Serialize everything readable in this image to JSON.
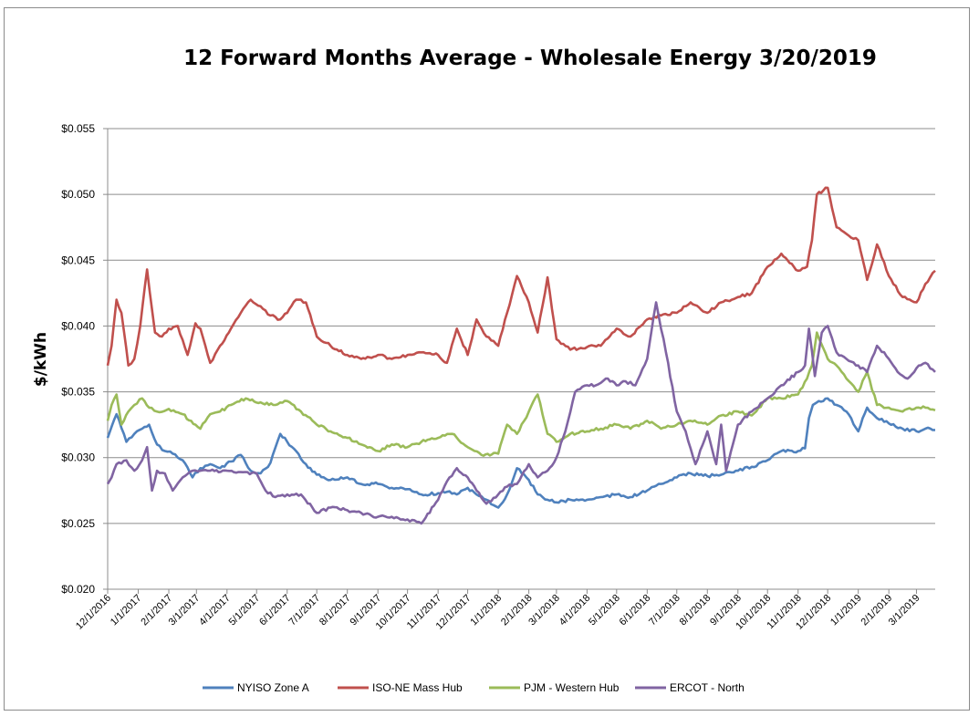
{
  "chart_data": {
    "type": "line",
    "title": "12 Forward Months Average - Wholesale Energy 3/20/2019",
    "xlabel": "",
    "ylabel": "$/kWh",
    "ylim": [
      0.02,
      0.055
    ],
    "yticks": [
      "$0.020",
      "$0.025",
      "$0.030",
      "$0.035",
      "$0.040",
      "$0.045",
      "$0.050",
      "$0.055"
    ],
    "xticks": [
      "12/1/2016",
      "1/1/2017",
      "2/1/2017",
      "3/1/2017",
      "4/1/2017",
      "5/1/2017",
      "6/1/2017",
      "7/1/2017",
      "8/1/2017",
      "9/1/2017",
      "10/1/2017",
      "11/1/2017",
      "12/1/2017",
      "1/1/2018",
      "2/1/2018",
      "3/1/2018",
      "4/1/2018",
      "5/1/2018",
      "6/1/2018",
      "7/1/2018",
      "8/1/2018",
      "9/1/2018",
      "10/1/2018",
      "11/1/2018",
      "12/1/2018",
      "1/1/2019",
      "2/1/2019",
      "3/1/2019"
    ],
    "grid": true,
    "legend_position": "bottom",
    "series": [
      {
        "name": "NYISO Zone A",
        "color": "#4f81bd",
        "x": [
          "12/1/2016",
          "12/10/2016",
          "12/20/2016",
          "12/28/2016",
          "1/5/2017",
          "1/12/2017",
          "1/20/2017",
          "1/28/2017",
          "2/5/2017",
          "2/15/2017",
          "2/25/2017",
          "3/5/2017",
          "3/15/2017",
          "3/25/2017",
          "4/5/2017",
          "4/15/2017",
          "4/25/2017",
          "5/5/2017",
          "5/15/2017",
          "5/25/2017",
          "6/1/2017",
          "6/10/2017",
          "6/20/2017",
          "7/1/2017",
          "7/15/2017",
          "8/1/2017",
          "8/15/2017",
          "9/1/2017",
          "9/15/2017",
          "10/1/2017",
          "10/15/2017",
          "11/1/2017",
          "11/10/2017",
          "11/20/2017",
          "12/1/2017",
          "12/10/2017",
          "12/20/2017",
          "1/1/2018",
          "1/10/2018",
          "1/20/2018",
          "2/1/2018",
          "2/10/2018",
          "2/20/2018",
          "3/1/2018",
          "3/15/2018",
          "4/1/2018",
          "4/15/2018",
          "5/1/2018",
          "5/15/2018",
          "6/1/2018",
          "6/15/2018",
          "7/1/2018",
          "7/15/2018",
          "8/1/2018",
          "8/15/2018",
          "9/1/2018",
          "9/15/2018",
          "10/1/2018",
          "10/15/2018",
          "11/1/2018",
          "11/8/2018",
          "11/12/2018",
          "11/16/2018",
          "11/22/2018",
          "12/1/2018",
          "12/10/2018",
          "12/20/2018",
          "1/1/2019",
          "1/10/2019",
          "1/20/2019",
          "2/1/2019",
          "2/15/2019",
          "3/1/2019",
          "3/10/2019",
          "3/20/2019"
        ],
        "y": [
          0.0315,
          0.0333,
          0.0312,
          0.0318,
          0.0322,
          0.0325,
          0.031,
          0.0305,
          0.0303,
          0.0298,
          0.0285,
          0.0292,
          0.0295,
          0.0292,
          0.0297,
          0.0302,
          0.029,
          0.0288,
          0.0296,
          0.0318,
          0.0312,
          0.0305,
          0.0295,
          0.0287,
          0.0283,
          0.0285,
          0.028,
          0.028,
          0.0277,
          0.0276,
          0.0272,
          0.0273,
          0.0274,
          0.0272,
          0.0277,
          0.0272,
          0.0268,
          0.0262,
          0.0272,
          0.0292,
          0.0283,
          0.0272,
          0.0268,
          0.0266,
          0.0268,
          0.0268,
          0.027,
          0.0272,
          0.027,
          0.0275,
          0.028,
          0.0285,
          0.0288,
          0.0286,
          0.0287,
          0.029,
          0.0293,
          0.0298,
          0.0305,
          0.0305,
          0.0307,
          0.033,
          0.034,
          0.0343,
          0.0345,
          0.034,
          0.0335,
          0.032,
          0.0338,
          0.033,
          0.0326,
          0.0322,
          0.032,
          0.0322,
          0.0321
        ]
      },
      {
        "name": "ISO-NE Mass Hub",
        "color": "#c0504d",
        "x": [
          "12/1/2016",
          "12/5/2016",
          "12/10/2016",
          "12/15/2016",
          "12/22/2016",
          "12/28/2016",
          "1/3/2017",
          "1/10/2017",
          "1/18/2017",
          "1/25/2017",
          "2/1/2017",
          "2/10/2017",
          "2/20/2017",
          "2/28/2017",
          "3/5/2017",
          "3/15/2017",
          "3/25/2017",
          "4/5/2017",
          "4/15/2017",
          "4/25/2017",
          "5/5/2017",
          "5/15/2017",
          "5/25/2017",
          "6/1/2017",
          "6/10/2017",
          "6/20/2017",
          "7/1/2017",
          "7/15/2017",
          "8/1/2017",
          "8/15/2017",
          "9/1/2017",
          "9/15/2017",
          "10/1/2017",
          "10/15/2017",
          "11/1/2017",
          "11/10/2017",
          "11/20/2017",
          "12/1/2017",
          "12/10/2017",
          "12/20/2017",
          "1/1/2018",
          "1/10/2018",
          "1/20/2018",
          "2/1/2018",
          "2/10/2018",
          "2/20/2018",
          "3/1/2018",
          "3/15/2018",
          "4/1/2018",
          "4/15/2018",
          "5/1/2018",
          "5/15/2018",
          "6/1/2018",
          "6/15/2018",
          "7/1/2018",
          "7/15/2018",
          "8/1/2018",
          "8/15/2018",
          "9/1/2018",
          "9/15/2018",
          "10/1/2018",
          "10/15/2018",
          "11/1/2018",
          "11/10/2018",
          "11/15/2018",
          "11/20/2018",
          "12/1/2018",
          "12/10/2018",
          "12/20/2018",
          "1/1/2019",
          "1/10/2019",
          "1/20/2019",
          "2/1/2019",
          "2/15/2019",
          "3/1/2019",
          "3/10/2019",
          "3/20/2019"
        ],
        "y": [
          0.037,
          0.0385,
          0.042,
          0.041,
          0.037,
          0.0375,
          0.04,
          0.0443,
          0.0395,
          0.0392,
          0.0398,
          0.04,
          0.0378,
          0.0402,
          0.0398,
          0.0372,
          0.0385,
          0.0398,
          0.041,
          0.042,
          0.0415,
          0.0408,
          0.0405,
          0.041,
          0.042,
          0.0418,
          0.0392,
          0.0385,
          0.0378,
          0.0375,
          0.0378,
          0.0375,
          0.0378,
          0.038,
          0.0378,
          0.0372,
          0.0398,
          0.0378,
          0.0405,
          0.0392,
          0.0385,
          0.041,
          0.0438,
          0.0418,
          0.0395,
          0.0437,
          0.039,
          0.0382,
          0.0384,
          0.0385,
          0.0398,
          0.0392,
          0.0405,
          0.0408,
          0.041,
          0.0418,
          0.041,
          0.0418,
          0.0422,
          0.0425,
          0.0445,
          0.0455,
          0.0442,
          0.0445,
          0.0465,
          0.05,
          0.0505,
          0.0475,
          0.047,
          0.0465,
          0.0435,
          0.0462,
          0.0438,
          0.0422,
          0.0418,
          0.0432,
          0.0442
        ]
      },
      {
        "name": "PJM - Western Hub",
        "color": "#9bbb59",
        "x": [
          "12/1/2016",
          "12/5/2016",
          "12/10/2016",
          "12/15/2016",
          "12/22/2016",
          "12/28/2016",
          "1/5/2017",
          "1/12/2017",
          "1/20/2017",
          "2/1/2017",
          "2/15/2017",
          "2/28/2017",
          "3/5/2017",
          "3/15/2017",
          "3/25/2017",
          "4/5/2017",
          "4/20/2017",
          "5/5/2017",
          "5/20/2017",
          "6/1/2017",
          "6/15/2017",
          "7/1/2017",
          "7/15/2017",
          "8/1/2017",
          "8/15/2017",
          "9/1/2017",
          "9/15/2017",
          "10/1/2017",
          "10/15/2017",
          "11/1/2017",
          "11/15/2017",
          "12/1/2017",
          "12/15/2017",
          "1/1/2018",
          "1/10/2018",
          "1/20/2018",
          "2/1/2018",
          "2/10/2018",
          "2/20/2018",
          "3/1/2018",
          "3/15/2018",
          "4/1/2018",
          "4/15/2018",
          "5/1/2018",
          "5/15/2018",
          "6/1/2018",
          "6/15/2018",
          "7/1/2018",
          "7/15/2018",
          "8/1/2018",
          "8/15/2018",
          "9/1/2018",
          "9/15/2018",
          "10/1/2018",
          "10/15/2018",
          "11/1/2018",
          "11/10/2018",
          "11/15/2018",
          "11/20/2018",
          "12/1/2018",
          "12/10/2018",
          "12/20/2018",
          "1/1/2019",
          "1/10/2019",
          "1/20/2019",
          "2/1/2019",
          "2/15/2019",
          "3/1/2019",
          "3/10/2019",
          "3/20/2019"
        ],
        "y": [
          0.0328,
          0.034,
          0.0348,
          0.0325,
          0.0335,
          0.034,
          0.0345,
          0.0338,
          0.0335,
          0.0337,
          0.0333,
          0.0325,
          0.0322,
          0.0333,
          0.0335,
          0.034,
          0.0345,
          0.0342,
          0.034,
          0.0343,
          0.0335,
          0.0325,
          0.032,
          0.0315,
          0.031,
          0.0305,
          0.031,
          0.0308,
          0.0312,
          0.0315,
          0.0318,
          0.0308,
          0.0302,
          0.0303,
          0.0325,
          0.0318,
          0.0335,
          0.0348,
          0.0318,
          0.0312,
          0.0318,
          0.032,
          0.0322,
          0.0325,
          0.0322,
          0.0328,
          0.0322,
          0.0325,
          0.0328,
          0.0325,
          0.0332,
          0.0335,
          0.0332,
          0.0345,
          0.0345,
          0.0348,
          0.036,
          0.037,
          0.0395,
          0.0375,
          0.037,
          0.036,
          0.035,
          0.0365,
          0.034,
          0.0338,
          0.0335,
          0.0338,
          0.0338,
          0.0336
        ]
      },
      {
        "name": "ERCOT - North",
        "color": "#8064a2",
        "x": [
          "12/1/2016",
          "12/5/2016",
          "12/10/2016",
          "12/20/2016",
          "12/28/2016",
          "1/5/2017",
          "1/10/2017",
          "1/15/2017",
          "1/20/2017",
          "1/28/2017",
          "2/5/2017",
          "2/15/2017",
          "2/25/2017",
          "3/5/2017",
          "3/15/2017",
          "4/1/2017",
          "4/15/2017",
          "5/1/2017",
          "5/10/2017",
          "5/20/2017",
          "6/1/2017",
          "6/15/2017",
          "7/1/2017",
          "7/15/2017",
          "8/1/2017",
          "8/15/2017",
          "9/1/2017",
          "9/15/2017",
          "10/1/2017",
          "10/15/2017",
          "11/1/2017",
          "11/10/2017",
          "11/20/2017",
          "12/1/2017",
          "12/10/2017",
          "12/20/2017",
          "1/1/2018",
          "1/10/2018",
          "1/20/2018",
          "2/1/2018",
          "2/10/2018",
          "2/20/2018",
          "3/1/2018",
          "3/10/2018",
          "3/20/2018",
          "4/1/2018",
          "4/10/2018",
          "4/20/2018",
          "5/1/2018",
          "5/10/2018",
          "5/20/2018",
          "6/1/2018",
          "6/10/2018",
          "6/20/2018",
          "7/1/2018",
          "7/10/2018",
          "7/20/2018",
          "8/1/2018",
          "8/10/2018",
          "8/15/2018",
          "8/20/2018",
          "9/1/2018",
          "9/15/2018",
          "10/1/2018",
          "10/15/2018",
          "11/1/2018",
          "11/8/2018",
          "11/12/2018",
          "11/18/2018",
          "11/25/2018",
          "12/1/2018",
          "12/10/2018",
          "12/20/2018",
          "1/1/2019",
          "1/10/2019",
          "1/20/2019",
          "2/1/2019",
          "2/10/2019",
          "2/20/2019",
          "3/1/2019",
          "3/10/2019",
          "3/20/2019"
        ],
        "y": [
          0.028,
          0.0285,
          0.0295,
          0.0298,
          0.029,
          0.0298,
          0.0308,
          0.0275,
          0.029,
          0.0288,
          0.0275,
          0.0285,
          0.029,
          0.029,
          0.029,
          0.029,
          0.0289,
          0.0288,
          0.0275,
          0.027,
          0.0272,
          0.0272,
          0.0258,
          0.0262,
          0.026,
          0.0258,
          0.0255,
          0.0255,
          0.0253,
          0.025,
          0.0268,
          0.0282,
          0.0292,
          0.0285,
          0.0275,
          0.0265,
          0.0272,
          0.0278,
          0.028,
          0.0295,
          0.0285,
          0.029,
          0.03,
          0.032,
          0.035,
          0.0355,
          0.0355,
          0.036,
          0.0355,
          0.0358,
          0.0355,
          0.0375,
          0.0418,
          0.038,
          0.0335,
          0.032,
          0.0295,
          0.032,
          0.0295,
          0.0325,
          0.029,
          0.0325,
          0.0335,
          0.0345,
          0.0355,
          0.0365,
          0.037,
          0.0398,
          0.0362,
          0.0395,
          0.04,
          0.038,
          0.0375,
          0.037,
          0.0365,
          0.0385,
          0.0375,
          0.0365,
          0.036,
          0.0368,
          0.0372,
          0.0365
        ]
      }
    ]
  }
}
